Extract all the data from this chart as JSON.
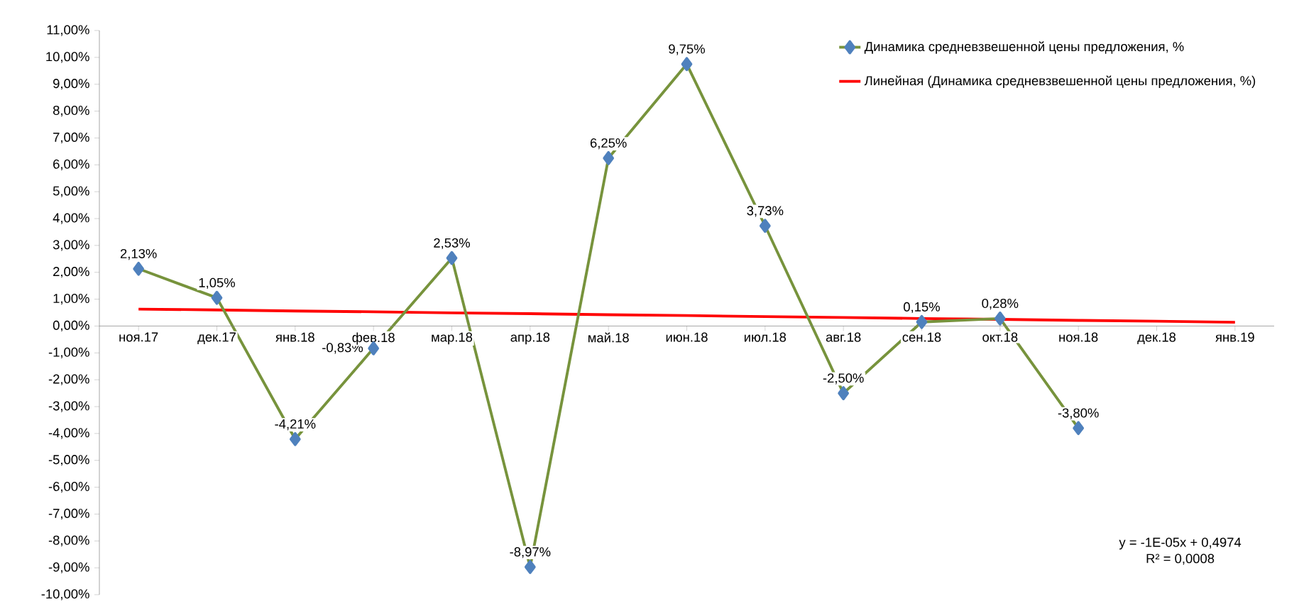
{
  "chart_data": {
    "type": "line",
    "categories": [
      "ноя.17",
      "дек.17",
      "янв.18",
      "фев.18",
      "мар.18",
      "апр.18",
      "май.18",
      "июн.18",
      "июл.18",
      "авг.18",
      "сен.18",
      "окт.18",
      "ноя.18",
      "дек.18",
      "янв.19"
    ],
    "series": [
      {
        "name": "Динамика средневзвешенной цены предложения, %",
        "color": "#77933c",
        "marker": "diamond",
        "values": [
          2.13,
          1.05,
          -4.21,
          -0.83,
          2.53,
          -8.97,
          6.25,
          9.75,
          3.73,
          -2.5,
          0.15,
          0.28,
          -3.8,
          null,
          null
        ],
        "value_labels": [
          "2,13%",
          "1,05%",
          "-4,21%",
          "-0,83%",
          "2,53%",
          "-8,97%",
          "6,25%",
          "9,75%",
          "3,73%",
          "-2,50%",
          "0,15%",
          "0,28%",
          "-3,80%",
          null,
          null
        ]
      },
      {
        "name": "Линейная (Динамика средневзвешенной цены предложения, %)",
        "color": "#ff0000",
        "marker": "none",
        "values": [
          0.63,
          0.6,
          0.56,
          0.53,
          0.49,
          0.46,
          0.42,
          0.39,
          0.35,
          0.32,
          0.28,
          0.25,
          0.21,
          0.18,
          0.14
        ]
      }
    ],
    "ylim": [
      -10,
      11
    ],
    "yticks": [
      {
        "value": -10,
        "label": "-10,00%"
      },
      {
        "value": -9,
        "label": "-9,00%"
      },
      {
        "value": -8,
        "label": "-8,00%"
      },
      {
        "value": -7,
        "label": "-7,00%"
      },
      {
        "value": -6,
        "label": "-6,00%"
      },
      {
        "value": -5,
        "label": "-5,00%"
      },
      {
        "value": -4,
        "label": "-4,00%"
      },
      {
        "value": -3,
        "label": "-3,00%"
      },
      {
        "value": -2,
        "label": "-2,00%"
      },
      {
        "value": -1,
        "label": "-1,00%"
      },
      {
        "value": 0,
        "label": "0,00%"
      },
      {
        "value": 1,
        "label": "1,00%"
      },
      {
        "value": 2,
        "label": "2,00%"
      },
      {
        "value": 3,
        "label": "3,00%"
      },
      {
        "value": 4,
        "label": "4,00%"
      },
      {
        "value": 5,
        "label": "5,00%"
      },
      {
        "value": 6,
        "label": "6,00%"
      },
      {
        "value": 7,
        "label": "7,00%"
      },
      {
        "value": 8,
        "label": "8,00%"
      },
      {
        "value": 9,
        "label": "9,00%"
      },
      {
        "value": 10,
        "label": "10,00%"
      },
      {
        "value": 11,
        "label": "11,00%"
      }
    ],
    "annotations": [
      "y = -1E-05x + 0,4974",
      "R² = 0,0008"
    ],
    "grid": false,
    "legend": "top right"
  }
}
